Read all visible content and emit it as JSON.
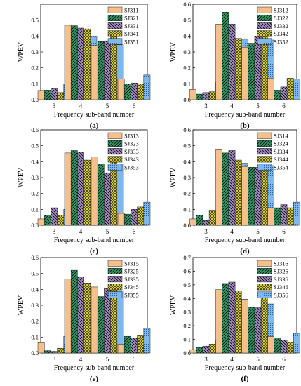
{
  "figure": {
    "ylabel": "WPEV",
    "xlabel": "Frequency sub-band number"
  },
  "series_styles": [
    {
      "color": "#f7c08a",
      "pattern": "solid"
    },
    {
      "color": "#2e9e6a",
      "pattern": "hatch-fwd"
    },
    {
      "color": "#a98fc9",
      "pattern": "hatch-back"
    },
    {
      "color": "#e5dd3c",
      "pattern": "cross"
    },
    {
      "color": "#7fb8f0",
      "pattern": "dots"
    }
  ],
  "chart_data": [
    {
      "type": "bar",
      "panel_label": "(a)",
      "categories": [
        "3",
        "4",
        "5",
        "6"
      ],
      "ylim": [
        0,
        0.6
      ],
      "yticks": [
        "0.0",
        "0.1",
        "0.2",
        "0.3",
        "0.4",
        "0.5"
      ],
      "xlabel": "Frequency sub-band number",
      "ylabel": "WPEV",
      "legend_position": "top-right",
      "series": [
        {
          "name": "SJ311",
          "values": [
            0.058,
            0.468,
            0.34,
            0.13
          ]
        },
        {
          "name": "SJ321",
          "values": [
            0.06,
            0.465,
            0.365,
            0.1
          ]
        },
        {
          "name": "SJ331",
          "values": [
            0.07,
            0.45,
            0.37,
            0.105
          ]
        },
        {
          "name": "SJ341",
          "values": [
            0.045,
            0.445,
            0.405,
            0.1
          ]
        },
        {
          "name": "SJ351",
          "values": [
            0.1,
            0.4,
            0.345,
            0.155
          ]
        }
      ]
    },
    {
      "type": "bar",
      "panel_label": "(b)",
      "categories": [
        "3",
        "4",
        "5",
        "6"
      ],
      "ylim": [
        0,
        0.6
      ],
      "yticks": [
        "0.0",
        "0.1",
        "0.2",
        "0.3",
        "0.4",
        "0.5",
        "0.6"
      ],
      "xlabel": "Frequency sub-band number",
      "ylabel": "WPEV",
      "legend_position": "top-right",
      "series": [
        {
          "name": "SJ312",
          "values": [
            0.065,
            0.475,
            0.33,
            0.135
          ]
        },
        {
          "name": "SJ322",
          "values": [
            0.035,
            0.55,
            0.355,
            0.06
          ]
        },
        {
          "name": "SJ332",
          "values": [
            0.045,
            0.475,
            0.4,
            0.08
          ]
        },
        {
          "name": "SJ342",
          "values": [
            0.05,
            0.385,
            0.43,
            0.135
          ]
        },
        {
          "name": "SJ352",
          "values": [
            0.11,
            0.38,
            0.375,
            0.13
          ]
        }
      ]
    },
    {
      "type": "bar",
      "panel_label": "(c)",
      "categories": [
        "3",
        "4",
        "5",
        "6"
      ],
      "ylim": [
        0,
        0.6
      ],
      "yticks": [
        "0.0",
        "0.1",
        "0.2",
        "0.3",
        "0.4",
        "0.5",
        "0.6"
      ],
      "xlabel": "Frequency sub-band number",
      "ylabel": "WPEV",
      "legend_position": "top-right",
      "series": [
        {
          "name": "SJ313",
          "values": [
            0.04,
            0.455,
            0.43,
            0.075
          ]
        },
        {
          "name": "SJ323",
          "values": [
            0.065,
            0.47,
            0.385,
            0.07
          ]
        },
        {
          "name": "SJ333",
          "values": [
            0.11,
            0.46,
            0.33,
            0.1
          ]
        },
        {
          "name": "SJ343",
          "values": [
            0.065,
            0.41,
            0.415,
            0.115
          ]
        },
        {
          "name": "SJ353",
          "values": [
            0.1,
            0.37,
            0.385,
            0.145
          ]
        }
      ]
    },
    {
      "type": "bar",
      "panel_label": "(d)",
      "categories": [
        "3",
        "4",
        "5",
        "6"
      ],
      "ylim": [
        0,
        0.6
      ],
      "yticks": [
        "0.0",
        "0.1",
        "0.2",
        "0.3",
        "0.4",
        "0.5",
        "0.6"
      ],
      "xlabel": "Frequency sub-band number",
      "ylabel": "WPEV",
      "legend_position": "top-right",
      "series": [
        {
          "name": "SJ314",
          "values": [
            0.04,
            0.475,
            0.37,
            0.11
          ]
        },
        {
          "name": "SJ324",
          "values": [
            0.065,
            0.455,
            0.365,
            0.11
          ]
        },
        {
          "name": "SJ334",
          "values": [
            0.03,
            0.47,
            0.365,
            0.13
          ]
        },
        {
          "name": "SJ344",
          "values": [
            0.095,
            0.41,
            0.385,
            0.11
          ]
        },
        {
          "name": "SJ354",
          "values": [
            0.085,
            0.39,
            0.375,
            0.145
          ]
        }
      ]
    },
    {
      "type": "bar",
      "panel_label": "(e)",
      "categories": [
        "3",
        "4",
        "5",
        "6"
      ],
      "ylim": [
        0,
        0.6
      ],
      "yticks": [
        "0.0",
        "0.1",
        "0.2",
        "0.3",
        "0.4",
        "0.5",
        "0.6"
      ],
      "xlabel": "Frequency sub-band number",
      "ylabel": "WPEV",
      "legend_position": "top-right",
      "series": [
        {
          "name": "SJ315",
          "values": [
            0.065,
            0.465,
            0.415,
            0.055
          ]
        },
        {
          "name": "SJ325",
          "values": [
            0.015,
            0.52,
            0.355,
            0.105
          ]
        },
        {
          "name": "SJ335",
          "values": [
            0.01,
            0.48,
            0.405,
            0.095
          ]
        },
        {
          "name": "SJ345",
          "values": [
            0.03,
            0.44,
            0.415,
            0.11
          ]
        },
        {
          "name": "SJ355",
          "values": [
            0.105,
            0.345,
            0.39,
            0.155
          ]
        }
      ]
    },
    {
      "type": "bar",
      "panel_label": "(f)",
      "categories": [
        "3",
        "4",
        "5",
        "6"
      ],
      "ylim": [
        0,
        0.7
      ],
      "yticks": [
        "0.0",
        "0.1",
        "0.2",
        "0.3",
        "0.4",
        "0.5",
        "0.6",
        "0.7"
      ],
      "xlabel": "Frequency sub-band number",
      "ylabel": "WPEV",
      "legend_position": "top-right",
      "series": [
        {
          "name": "SJ316",
          "values": [
            0.025,
            0.465,
            0.39,
            0.12
          ]
        },
        {
          "name": "SJ326",
          "values": [
            0.04,
            0.51,
            0.335,
            0.11
          ]
        },
        {
          "name": "SJ336",
          "values": [
            0.05,
            0.52,
            0.335,
            0.095
          ]
        },
        {
          "name": "SJ346",
          "values": [
            0.065,
            0.455,
            0.405,
            0.08
          ]
        },
        {
          "name": "SJ356",
          "values": [
            0.09,
            0.395,
            0.36,
            0.145
          ]
        }
      ]
    }
  ]
}
